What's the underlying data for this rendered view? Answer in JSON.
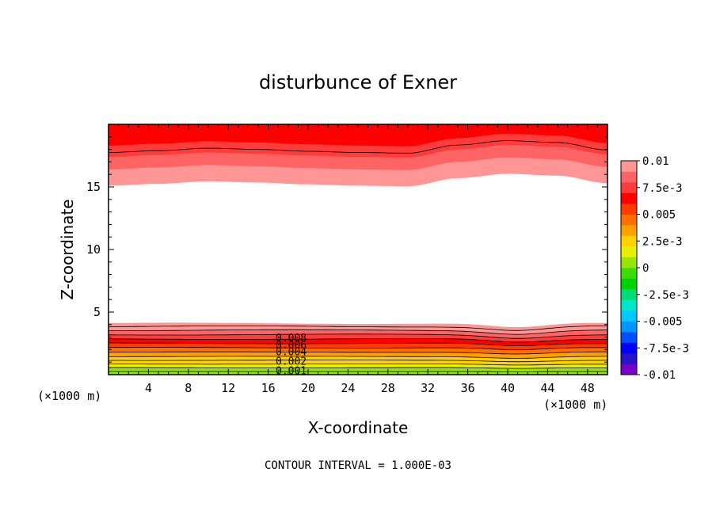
{
  "chart_data": {
    "type": "heatmap",
    "title": "disturbunce of Exner",
    "xlabel": "X-coordinate",
    "ylabel": "Z-coordinate",
    "x_unit": "(×1000 m)",
    "y_unit": "(×1000 m)",
    "xlim": [
      0,
      50
    ],
    "ylim": [
      0,
      20
    ],
    "x_ticks": [
      4,
      8,
      12,
      16,
      20,
      24,
      28,
      32,
      36,
      40,
      44,
      48
    ],
    "y_ticks": [
      5,
      10,
      15
    ],
    "contour_interval_text": "CONTOUR INTERVAL = 1.000E-03",
    "contour_labels": [
      "0.008",
      "0.006",
      "0.004",
      "0.002",
      "0.001"
    ],
    "colorbar": {
      "range": [
        -0.01,
        0.01
      ],
      "tick_labels": [
        "0.01",
        "7.5e-3",
        "0.005",
        "2.5e-3",
        "0",
        "-2.5e-3",
        "-0.005",
        "-7.5e-3",
        "-0.01"
      ],
      "colors": [
        "#7a00c8",
        "#2814c8",
        "#0000ff",
        "#0050ff",
        "#0096ff",
        "#00c8ff",
        "#00e6c8",
        "#00dc78",
        "#00d200",
        "#3cdc00",
        "#96e600",
        "#e6f000",
        "#ffd200",
        "#ffa000",
        "#ff6e00",
        "#ff3c00",
        "#ff0000",
        "#ff3c3c",
        "#ff6464",
        "#ff9696"
      ]
    },
    "background_value_z_range": [
      4.1,
      15.0
    ],
    "surface_field": {
      "z_band_edges": [
        0,
        0.25,
        0.55,
        0.85,
        1.15,
        1.45,
        1.8,
        2.15,
        2.5,
        2.85,
        3.2,
        3.55,
        3.85,
        4.1
      ],
      "levels": [
        0.0005,
        0.001,
        0.0015,
        0.002,
        0.0025,
        0.003,
        0.004,
        0.005,
        0.006,
        0.007,
        0.008,
        0.009,
        0.01
      ]
    },
    "top_field": {
      "boundary_x": [
        0,
        5,
        10,
        15,
        20,
        25,
        30,
        35,
        40,
        45,
        50
      ],
      "boundary_z": [
        15.1,
        15.25,
        15.45,
        15.35,
        15.2,
        15.1,
        15.05,
        15.7,
        16.05,
        15.9,
        15.3
      ],
      "band_offsets": [
        0,
        1.3,
        2.3,
        3.2
      ],
      "levels": [
        0.01,
        0.0085,
        0.0075,
        0.0065
      ]
    },
    "x_dip": {
      "center": 41,
      "width": 4,
      "depth": 0.35
    }
  }
}
